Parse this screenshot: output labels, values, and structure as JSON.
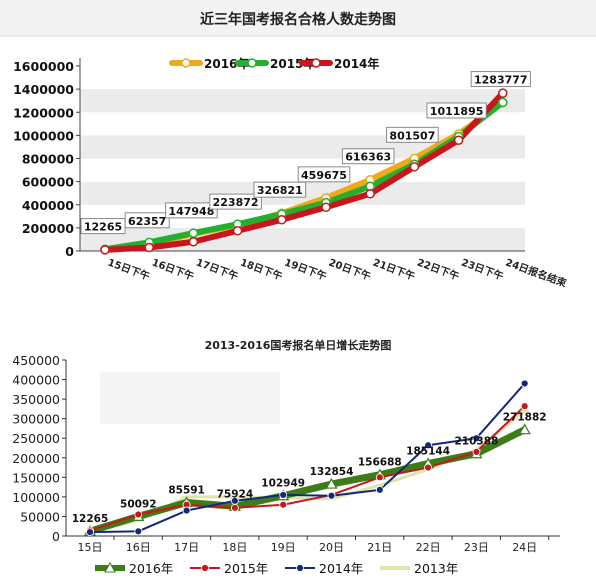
{
  "chart_data": [
    {
      "type": "line",
      "title": "近三年国考报名合格人数走势图",
      "categories": [
        "15日下午",
        "16日下午",
        "17日下午",
        "18日下午",
        "19日下午",
        "20日下午",
        "21日下午",
        "22日下午",
        "23日下午",
        "24日报名结束"
      ],
      "ylim": [
        0,
        1600000
      ],
      "yticks": [
        0,
        200000,
        400000,
        600000,
        800000,
        1000000,
        1200000,
        1400000,
        1600000
      ],
      "grid": "horizontal bands",
      "legend": "top-center",
      "series": [
        {
          "name": "2016年",
          "color": "#f0a81c",
          "values": [
            12265,
            62357,
            147948,
            223872,
            326821,
            459675,
            616363,
            801507,
            1011895,
            1283777
          ]
        },
        {
          "name": "2015年",
          "color": "#22b02e",
          "values": [
            15000,
            75000,
            155000,
            232000,
            320000,
            418000,
            560000,
            750000,
            990000,
            1285000
          ]
        },
        {
          "name": "2014年",
          "color": "#c8161d",
          "values": [
            10000,
            30000,
            80000,
            175000,
            270000,
            378000,
            495000,
            728000,
            958000,
            1365000
          ]
        }
      ],
      "data_labels": [
        "12265",
        "62357",
        "147948",
        "223872",
        "326821",
        "459675",
        "616363",
        "801507",
        "1011895",
        "1283777"
      ]
    },
    {
      "type": "line",
      "title": "2013-2016国考报名单日增长走势图",
      "categories": [
        "15日",
        "16日",
        "17日",
        "18日",
        "19日",
        "20日",
        "21日",
        "22日",
        "23日",
        "24日"
      ],
      "ylim": [
        0,
        450000
      ],
      "yticks": [
        0,
        50000,
        100000,
        150000,
        200000,
        250000,
        300000,
        350000,
        400000,
        450000
      ],
      "legend": "bottom",
      "series": [
        {
          "name": "2016年",
          "color": "#3c7d18",
          "values": [
            12265,
            50092,
            85591,
            75924,
            102949,
            132854,
            156688,
            185144,
            210388,
            271882
          ]
        },
        {
          "name": "2015年",
          "color": "#c8161d",
          "values": [
            14000,
            55000,
            80000,
            72000,
            80000,
            105000,
            150000,
            175000,
            215000,
            332000
          ]
        },
        {
          "name": "2014年",
          "color": "#13287a",
          "values": [
            10000,
            12000,
            65000,
            90000,
            105000,
            103000,
            118000,
            232000,
            250000,
            390000
          ]
        },
        {
          "name": "2013年",
          "color": "#dfe4a8",
          "values": [
            11000,
            40000,
            100000,
            100000,
            98000,
            95000,
            130000,
            170000,
            220000,
            320000
          ]
        }
      ],
      "data_labels": [
        "12265",
        "50092",
        "85591",
        "75924",
        "102949",
        "132854",
        "156688",
        "185144",
        "210388",
        "271882"
      ]
    }
  ]
}
